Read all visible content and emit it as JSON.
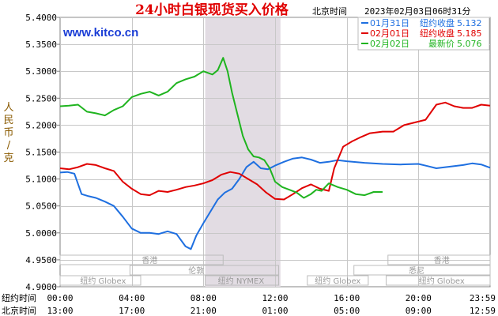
{
  "chart_data": {
    "type": "line",
    "title": "24小时白银现货买入价格",
    "timezone_label": "北京时间",
    "timestamp": "2023年02月03日06时31分",
    "watermark": "www.kitco.cn",
    "ylabel": "人民币/克",
    "ylim": [
      4.9,
      5.4
    ],
    "yticks": [
      "5.4000",
      "5.3500",
      "5.3000",
      "5.2500",
      "5.2000",
      "5.1500",
      "5.1000",
      "5.0500",
      "5.0000",
      "4.9500",
      "4.9000"
    ],
    "xlim": [
      0,
      24
    ],
    "x_ticks_ny": {
      "label": "纽约时间",
      "ticks": [
        "00:00",
        "04:00",
        "08:00",
        "12:00",
        "16:00",
        "20:00",
        "23:59"
      ]
    },
    "x_ticks_bj": {
      "label": "北京时间",
      "ticks": [
        "13:00",
        "17:00",
        "21:00",
        "01:00",
        "05:00",
        "09:00",
        "12:59"
      ]
    },
    "shaded_session": [
      8.1,
      12.3
    ],
    "market_sessions": [
      {
        "label": "香港",
        "start": 0,
        "end": 9.1,
        "row": 1,
        "label_at": 5.0
      },
      {
        "label": "香港",
        "start": 18.3,
        "end": 24,
        "row": 1,
        "label_at": 21.3
      },
      {
        "label": "伦敦",
        "start": 3.9,
        "end": 12.2,
        "row": 2,
        "label_at": 7.6
      },
      {
        "label": "悉尼",
        "start": 16.4,
        "end": 24,
        "row": 2,
        "label_at": 19.9
      },
      {
        "label": "纽约 Globex",
        "start": 0,
        "end": 4.5,
        "row": 3,
        "label_at": 2.4
      },
      {
        "label": "纽约 NYMEX",
        "start": 8.1,
        "end": 12.2,
        "row": 3,
        "label_at": 10.1
      },
      {
        "label": "纽约 Globex",
        "start": 13.8,
        "end": 17.2,
        "row": 3,
        "label_at": 15.5
      },
      {
        "label": "纽约 Globex",
        "start": 18.2,
        "end": 24,
        "row": 3,
        "label_at": 21.3
      }
    ],
    "legend_position": "top-right",
    "series": [
      {
        "name": "01月31日",
        "legend_label": "纽约收盘",
        "legend_value": "5.132",
        "color": "#1e6fe0",
        "x": [
          0,
          0.4,
          0.8,
          1.2,
          1.6,
          2.0,
          2.5,
          3.0,
          3.5,
          4.0,
          4.5,
          5.0,
          5.5,
          6.0,
          6.5,
          7.0,
          7.3,
          7.6,
          8.0,
          8.4,
          8.8,
          9.2,
          9.6,
          10.0,
          10.4,
          10.8,
          11.2,
          11.6,
          12.0,
          12.5,
          13.0,
          13.5,
          14.0,
          14.5,
          15.0,
          15.5,
          16.0,
          17.0,
          18.0,
          19.0,
          20.0,
          20.5,
          21.0,
          21.5,
          22.0,
          22.5,
          23.0,
          23.5,
          24.0
        ],
        "values": [
          5.112,
          5.113,
          5.11,
          5.072,
          5.068,
          5.065,
          5.058,
          5.05,
          5.03,
          5.008,
          5.0,
          5.0,
          4.998,
          5.003,
          4.998,
          4.975,
          4.97,
          4.995,
          5.018,
          5.04,
          5.062,
          5.075,
          5.082,
          5.1,
          5.122,
          5.132,
          5.12,
          5.118,
          5.125,
          5.132,
          5.138,
          5.14,
          5.136,
          5.13,
          5.132,
          5.135,
          5.133,
          5.13,
          5.128,
          5.127,
          5.128,
          5.124,
          5.12,
          5.122,
          5.124,
          5.126,
          5.129,
          5.127,
          5.121
        ]
      },
      {
        "name": "02月01日",
        "legend_label": "纽约收盘",
        "legend_value": "5.185",
        "color": "#e00000",
        "x": [
          0,
          0.5,
          1.0,
          1.5,
          2.0,
          2.5,
          3.0,
          3.5,
          4.0,
          4.5,
          5.0,
          5.5,
          6.0,
          6.5,
          7.0,
          7.5,
          8.0,
          8.5,
          9.0,
          9.5,
          10.0,
          10.5,
          11.0,
          11.5,
          12.0,
          12.5,
          13.0,
          13.5,
          14.0,
          14.5,
          15.0,
          15.3,
          15.8,
          16.3,
          16.8,
          17.3,
          18.0,
          18.6,
          19.2,
          19.8,
          20.4,
          21.0,
          21.5,
          22.0,
          22.5,
          23.0,
          23.5,
          24.0
        ],
        "values": [
          5.12,
          5.118,
          5.122,
          5.128,
          5.126,
          5.12,
          5.115,
          5.095,
          5.082,
          5.072,
          5.07,
          5.078,
          5.076,
          5.08,
          5.085,
          5.088,
          5.092,
          5.098,
          5.108,
          5.113,
          5.11,
          5.1,
          5.09,
          5.075,
          5.063,
          5.062,
          5.072,
          5.083,
          5.09,
          5.082,
          5.078,
          5.12,
          5.16,
          5.17,
          5.178,
          5.185,
          5.188,
          5.188,
          5.2,
          5.205,
          5.21,
          5.238,
          5.242,
          5.235,
          5.232,
          5.232,
          5.238,
          5.236
        ]
      },
      {
        "name": "02月02日",
        "legend_label": "最新价",
        "legend_value": "5.076",
        "color": "#1fb41f",
        "x": [
          0,
          0.5,
          1.0,
          1.5,
          2.0,
          2.5,
          3.0,
          3.5,
          4.0,
          4.5,
          5.0,
          5.5,
          6.0,
          6.5,
          7.0,
          7.5,
          8.0,
          8.5,
          8.8,
          9.1,
          9.35,
          9.6,
          9.9,
          10.2,
          10.5,
          10.8,
          11.1,
          11.4,
          11.7,
          12.0,
          12.4,
          12.8,
          13.2,
          13.6,
          14.0,
          14.3,
          14.6,
          15.0,
          15.5,
          16.0,
          16.5,
          17.0,
          17.5,
          18.0
        ],
        "values": [
          5.235,
          5.236,
          5.238,
          5.225,
          5.222,
          5.218,
          5.228,
          5.235,
          5.252,
          5.258,
          5.262,
          5.255,
          5.262,
          5.278,
          5.285,
          5.29,
          5.3,
          5.294,
          5.302,
          5.325,
          5.3,
          5.26,
          5.22,
          5.18,
          5.155,
          5.142,
          5.14,
          5.135,
          5.12,
          5.095,
          5.085,
          5.08,
          5.075,
          5.065,
          5.072,
          5.08,
          5.078,
          5.092,
          5.085,
          5.08,
          5.072,
          5.07,
          5.076,
          5.076
        ]
      }
    ]
  }
}
